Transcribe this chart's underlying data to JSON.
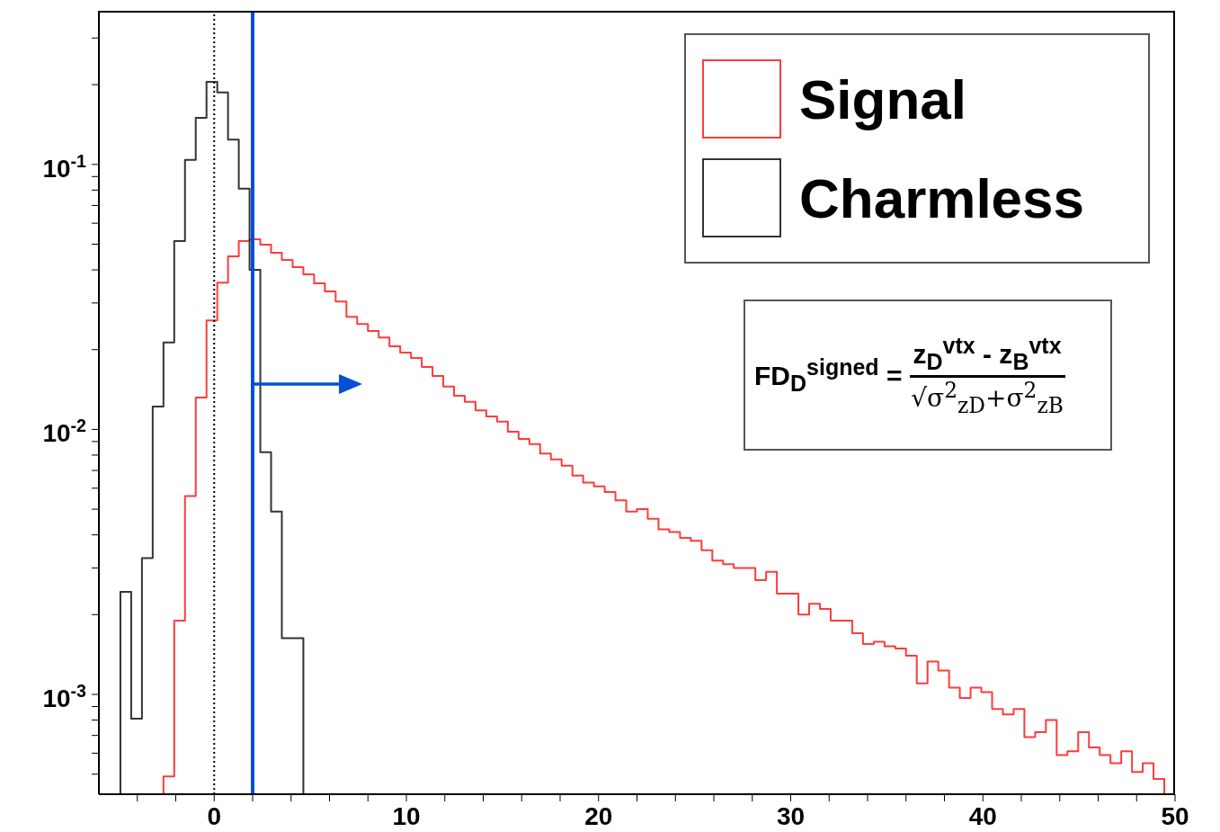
{
  "chart_data": {
    "type": "histogram",
    "bins": [
      -6,
      -5.44,
      -4.88,
      -4.32,
      -3.76,
      -3.2,
      -2.64,
      -2.08,
      -1.52,
      -0.96,
      -0.4,
      0.16,
      0.72,
      1.28,
      1.84,
      2.4,
      2.96,
      3.52,
      4.08,
      4.64,
      5.2,
      5.76,
      6.32,
      6.88,
      7.44,
      8,
      8.56,
      9.12,
      9.68,
      10.24,
      10.8,
      11.36,
      11.92,
      12.48,
      13.04,
      13.6,
      14.16,
      14.72,
      15.28,
      15.84,
      16.4,
      16.96,
      17.52,
      18.08,
      18.64,
      19.2,
      19.76,
      20.32,
      20.88,
      21.44,
      22,
      22.56,
      23.12,
      23.68,
      24.24,
      24.8,
      25.36,
      25.92,
      26.48,
      27.04,
      27.6,
      28.16,
      28.72,
      29.28,
      29.84,
      30.4,
      30.96,
      31.52,
      32.08,
      32.64,
      33.2,
      33.76,
      34.32,
      34.88,
      35.44,
      36,
      36.56,
      37.12,
      37.68,
      38.24,
      38.8,
      39.36,
      39.92,
      40.48,
      41.04,
      41.6,
      42.16,
      42.72,
      43.28,
      43.84,
      44.4,
      44.96,
      45.52,
      46.08,
      46.64,
      47.2,
      47.76,
      48.32,
      48.88,
      49.44,
      50
    ],
    "series": [
      {
        "name": "Signal",
        "color": "#ff3b3b",
        "values": [
          null,
          null,
          null,
          null,
          null,
          null,
          0.00049,
          0.0019,
          0.0056,
          0.0132,
          0.0258,
          0.0358,
          0.045,
          0.0514,
          0.0522,
          0.0498,
          0.0464,
          0.0436,
          0.041,
          0.0385,
          0.0356,
          0.0332,
          0.0304,
          0.0266,
          0.025,
          0.0235,
          0.0222,
          0.0206,
          0.0195,
          0.0186,
          0.0172,
          0.0159,
          0.0145,
          0.0134,
          0.0127,
          0.0118,
          0.0112,
          0.0107,
          0.0098,
          0.0092,
          0.0088,
          0.0081,
          0.0077,
          0.0073,
          0.0067,
          0.0063,
          0.0061,
          0.0058,
          0.0054,
          0.0049,
          0.005,
          0.0046,
          0.0042,
          0.0041,
          0.0039,
          0.0038,
          0.0035,
          0.0032,
          0.0031,
          0.003,
          0.003,
          0.0027,
          0.0029,
          0.0024,
          0.0024,
          0.002,
          0.0022,
          0.0021,
          0.0019,
          0.0019,
          0.0017,
          0.00155,
          0.00158,
          0.00152,
          0.00149,
          0.0014,
          0.0011,
          0.00133,
          0.00123,
          0.00106,
          0.00097,
          0.00106,
          0.00102,
          0.00088,
          0.00084,
          0.00088,
          0.00069,
          0.00072,
          0.0008,
          0.00059,
          0.00061,
          0.00072,
          0.00063,
          0.00059,
          0.00055,
          0.00061,
          0.00051,
          0.00055,
          0.00048,
          null
        ]
      },
      {
        "name": "Charmless",
        "color": "#333333",
        "values": [
          null,
          null,
          0.00244,
          0.00081,
          0.00327,
          0.0122,
          0.0213,
          0.0514,
          0.104,
          0.15,
          0.205,
          0.187,
          0.124,
          0.081,
          0.04,
          0.0082,
          0.0049,
          0.00163,
          0.00163,
          null,
          null,
          null,
          null,
          null,
          null,
          null,
          null,
          null,
          null,
          null,
          null,
          null,
          null,
          null,
          null,
          null,
          null,
          null,
          null,
          null,
          null,
          null,
          null,
          null,
          null,
          null,
          null,
          null,
          null,
          null,
          null,
          null,
          null,
          null,
          null,
          null,
          null,
          null,
          null,
          null,
          null,
          null,
          null,
          null,
          null,
          null,
          null,
          null,
          null,
          null,
          null,
          null,
          null,
          null,
          null,
          null,
          null,
          null,
          null,
          null,
          null,
          null,
          null,
          null,
          null,
          null,
          null,
          null,
          null,
          null,
          null,
          null,
          null,
          null,
          null,
          null,
          null,
          null,
          null,
          null
        ]
      }
    ],
    "log": "y",
    "xlim": [
      -6,
      50
    ],
    "ylim": [
      0.00042,
      0.38
    ],
    "xticks": [
      {
        "value": -4,
        "label": null
      },
      {
        "value": -2,
        "label": null
      },
      0,
      {
        "value": 2,
        "label": null
      },
      {
        "value": 4,
        "label": null
      },
      {
        "value": 6,
        "label": null
      },
      {
        "value": 8,
        "label": null
      },
      10,
      {
        "value": 12,
        "label": null
      },
      {
        "value": 14,
        "label": null
      },
      {
        "value": 16,
        "label": null
      },
      {
        "value": 18,
        "label": null
      },
      20,
      {
        "value": 22,
        "label": null
      },
      {
        "value": 24,
        "label": null
      },
      {
        "value": 26,
        "label": null
      },
      {
        "value": 28,
        "label": null
      },
      30,
      {
        "value": 32,
        "label": null
      },
      {
        "value": 34,
        "label": null
      },
      {
        "value": 36,
        "label": null
      },
      {
        "value": 38,
        "label": null
      },
      40,
      {
        "value": 42,
        "label": null
      },
      {
        "value": 44,
        "label": null
      },
      {
        "value": 46,
        "label": null
      },
      {
        "value": 48,
        "label": null
      },
      50
    ],
    "yticks": [
      {
        "value": 0.0005,
        "label": null
      },
      {
        "value": 0.0006,
        "label": null
      },
      {
        "value": 0.0007,
        "label": null
      },
      {
        "value": 0.0008,
        "label": null
      },
      {
        "value": 0.0009,
        "label": null
      },
      {
        "value": 0.001,
        "label": "10$^{-3}$"
      },
      {
        "value": 0.002,
        "label": null
      },
      {
        "value": 0.003,
        "label": null
      },
      {
        "value": 0.004,
        "label": null
      },
      {
        "value": 0.005,
        "label": null
      },
      {
        "value": 0.006,
        "label": null
      },
      {
        "value": 0.007,
        "label": null
      },
      {
        "value": 0.008,
        "label": null
      },
      {
        "value": 0.009,
        "label": null
      },
      {
        "value": 0.01,
        "label": "10$^{-2}$"
      },
      {
        "value": 0.02,
        "label": null
      },
      {
        "value": 0.03,
        "label": null
      },
      {
        "value": 0.04,
        "label": null
      },
      {
        "value": 0.05,
        "label": null
      },
      {
        "value": 0.06,
        "label": null
      },
      {
        "value": 0.07,
        "label": null
      },
      {
        "value": 0.08,
        "label": null
      },
      {
        "value": 0.09,
        "label": null
      },
      {
        "value": 0.1,
        "label": "10$^{-1}$"
      },
      {
        "value": 0.2,
        "label": null
      },
      {
        "value": 0.3,
        "label": null
      }
    ],
    "legend": "top right",
    "ref_lines": [
      {
        "axis": "x",
        "value": 0,
        "color": "#000000",
        "line_style": "dotted"
      },
      {
        "axis": "x",
        "value": 2,
        "color": "#0050d8",
        "line_style": "solid"
      }
    ],
    "annotations": [
      "FD$_{D}$$^{signed}$ =",
      "z$_{D}$$^{vtx}$ - z$_{B}$$^{vtx}$",
      "√σ$^{2}$$_{zD}$+σ$^{2}$$_{zB}$"
    ]
  }
}
